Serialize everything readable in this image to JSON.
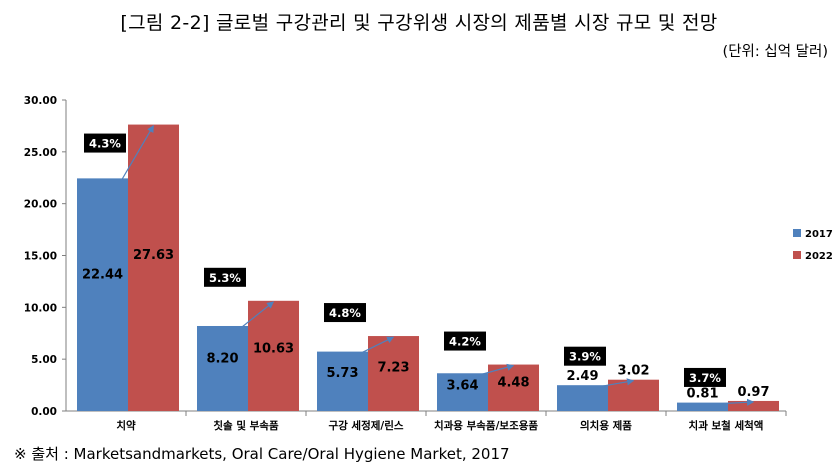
{
  "title": "[그림 2-2] 글로벌 구강관리 및 구강위생 시장의 제품별 시장 규모 및 전망",
  "unit": "(단위: 십억 달러)",
  "source": "※ 출처 : Marketsandmarkets, Oral Care/Oral Hygiene Market, 2017",
  "colors": {
    "s2017": "#4F81BD",
    "s2022": "#C0504D",
    "growth_line": "#4F81BD",
    "cagr_box": "#000000",
    "cagr_text": "#ffffff"
  },
  "chart_data": {
    "type": "bar",
    "categories": [
      "치약",
      "칫솔 및 부속품",
      "구강 세정제/린스",
      "치과용 부속품/보조용품",
      "의치용 제품",
      "치과 보철 세척액"
    ],
    "series": [
      {
        "name": "2017",
        "values": [
          22.44,
          8.2,
          5.73,
          3.64,
          2.49,
          0.81
        ],
        "labels": [
          "22.44",
          "8.20",
          "5.73",
          "3.64",
          "2.49",
          "0.81"
        ]
      },
      {
        "name": "2022",
        "values": [
          27.63,
          10.63,
          7.23,
          4.48,
          3.02,
          0.97
        ],
        "labels": [
          "27.63",
          "10.63",
          "7.23",
          "4.48",
          "3.02",
          "0.97"
        ]
      }
    ],
    "cagr": [
      "4.3%",
      "5.3%",
      "4.8%",
      "4.2%",
      "3.9%",
      "3.7%"
    ],
    "ylim": [
      0,
      30
    ],
    "yticks": [
      "0.00",
      "5.00",
      "10.00",
      "15.00",
      "20.00",
      "25.00",
      "30.00"
    ],
    "grid": false,
    "legend_position": "right"
  }
}
